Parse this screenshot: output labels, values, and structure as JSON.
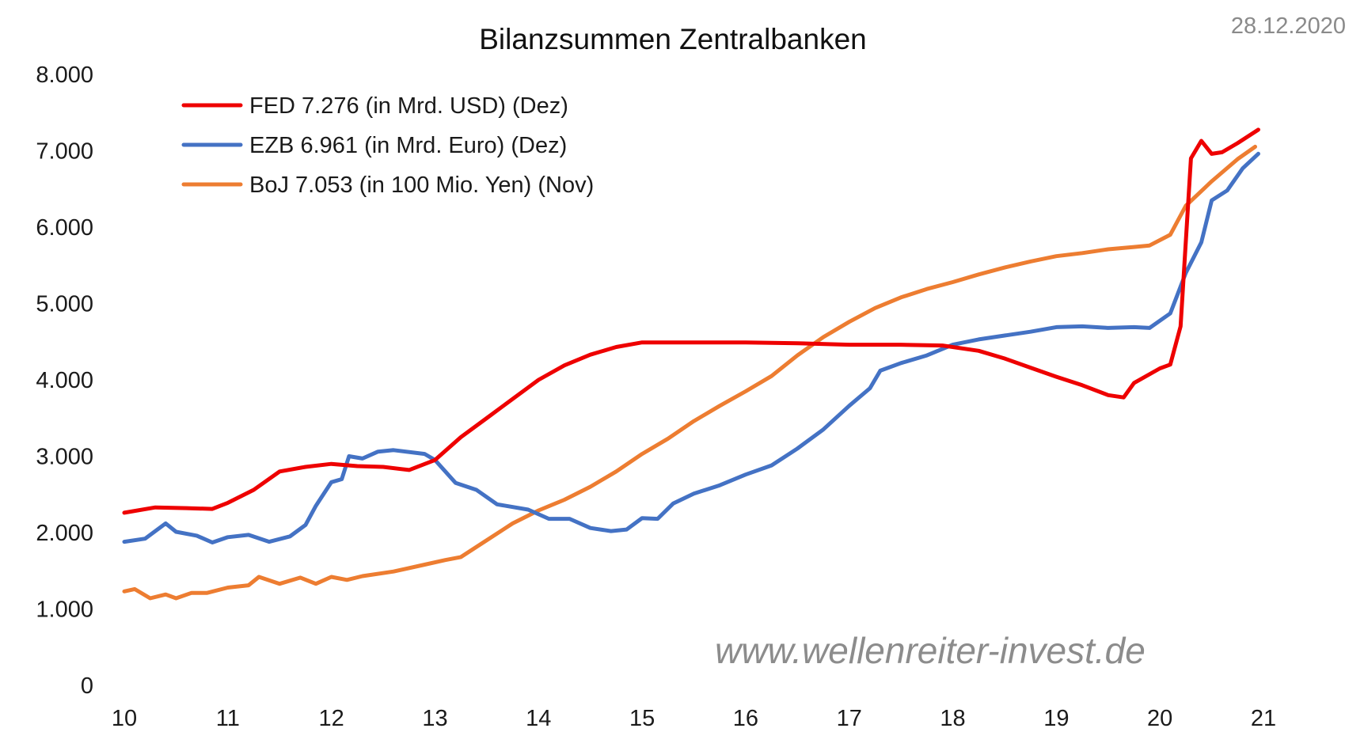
{
  "chart_data": {
    "type": "line",
    "title": "Bilanzsummen Zentralbanken",
    "date": "28.12.2020",
    "watermark": "www.wellenreiter-invest.de",
    "xlabel": "",
    "ylabel": "",
    "xlim": [
      10,
      21
    ],
    "ylim": [
      0,
      8000
    ],
    "x_ticks": [
      10,
      11,
      12,
      13,
      14,
      15,
      16,
      17,
      18,
      19,
      20,
      21
    ],
    "x_tick_labels": [
      "10",
      "11",
      "12",
      "13",
      "14",
      "15",
      "16",
      "17",
      "18",
      "19",
      "20",
      "21"
    ],
    "y_ticks": [
      0,
      1000,
      2000,
      3000,
      4000,
      5000,
      6000,
      7000,
      8000
    ],
    "y_tick_labels": [
      "0",
      "1.000",
      "2.000",
      "3.000",
      "4.000",
      "5.000",
      "6.000",
      "7.000",
      "8.000"
    ],
    "grid": false,
    "legend_position": "top-left",
    "series": [
      {
        "name": "FED 7.276 (in Mrd. USD) (Dez)",
        "color": "#ee0000",
        "x": [
          10.0,
          10.3,
          10.6,
          10.85,
          11.0,
          11.25,
          11.5,
          11.75,
          12.0,
          12.25,
          12.5,
          12.75,
          13.0,
          13.25,
          13.5,
          13.75,
          14.0,
          14.25,
          14.5,
          14.75,
          15.0,
          15.5,
          16.0,
          16.5,
          17.0,
          17.5,
          17.9,
          18.25,
          18.5,
          18.75,
          19.0,
          19.25,
          19.5,
          19.65,
          19.75,
          20.0,
          20.1,
          20.2,
          20.3,
          20.4,
          20.5,
          20.6,
          20.75,
          20.95
        ],
        "values": [
          2260,
          2330,
          2320,
          2310,
          2390,
          2560,
          2800,
          2860,
          2900,
          2870,
          2860,
          2820,
          2950,
          3250,
          3500,
          3750,
          4000,
          4190,
          4330,
          4430,
          4490,
          4490,
          4490,
          4480,
          4460,
          4460,
          4450,
          4380,
          4280,
          4160,
          4040,
          3930,
          3800,
          3770,
          3960,
          4150,
          4200,
          4700,
          6900,
          7130,
          6960,
          6980,
          7100,
          7276
        ]
      },
      {
        "name": "EZB 6.961 (in Mrd. Euro) (Dez)",
        "color": "#4472c4",
        "x": [
          10.0,
          10.2,
          10.4,
          10.5,
          10.7,
          10.85,
          11.0,
          11.2,
          11.4,
          11.6,
          11.75,
          11.85,
          12.0,
          12.1,
          12.17,
          12.3,
          12.45,
          12.6,
          12.9,
          13.0,
          13.2,
          13.4,
          13.6,
          13.9,
          14.1,
          14.3,
          14.5,
          14.7,
          14.85,
          15.0,
          15.15,
          15.3,
          15.5,
          15.75,
          16.0,
          16.25,
          16.5,
          16.75,
          17.0,
          17.2,
          17.3,
          17.5,
          17.75,
          18.0,
          18.25,
          18.5,
          18.75,
          19.0,
          19.25,
          19.5,
          19.75,
          19.9,
          20.1,
          20.25,
          20.4,
          20.5,
          20.65,
          20.8,
          20.95
        ],
        "values": [
          1880,
          1920,
          2120,
          2010,
          1960,
          1870,
          1940,
          1970,
          1880,
          1950,
          2100,
          2350,
          2660,
          2700,
          3000,
          2970,
          3060,
          3080,
          3030,
          2950,
          2650,
          2560,
          2370,
          2300,
          2180,
          2180,
          2060,
          2020,
          2040,
          2190,
          2180,
          2380,
          2510,
          2620,
          2760,
          2880,
          3100,
          3350,
          3660,
          3890,
          4120,
          4220,
          4320,
          4460,
          4530,
          4580,
          4630,
          4690,
          4700,
          4680,
          4690,
          4680,
          4870,
          5400,
          5800,
          6350,
          6480,
          6770,
          6961
        ]
      },
      {
        "name": "BoJ 7.053 (in 100 Mio. Yen) (Nov)",
        "color": "#ed7d31",
        "x": [
          10.0,
          10.1,
          10.25,
          10.4,
          10.5,
          10.65,
          10.8,
          11.0,
          11.2,
          11.3,
          11.5,
          11.7,
          11.85,
          12.0,
          12.15,
          12.3,
          12.6,
          12.9,
          13.1,
          13.25,
          13.5,
          13.75,
          14.0,
          14.25,
          14.5,
          14.75,
          15.0,
          15.25,
          15.5,
          15.75,
          16.0,
          16.25,
          16.5,
          16.75,
          17.0,
          17.25,
          17.5,
          17.75,
          18.0,
          18.25,
          18.5,
          18.75,
          19.0,
          19.25,
          19.5,
          19.75,
          19.9,
          20.1,
          20.25,
          20.5,
          20.75,
          20.92
        ],
        "values": [
          1230,
          1260,
          1140,
          1190,
          1140,
          1210,
          1210,
          1280,
          1310,
          1420,
          1330,
          1410,
          1330,
          1420,
          1380,
          1430,
          1490,
          1580,
          1640,
          1680,
          1900,
          2120,
          2290,
          2430,
          2600,
          2800,
          3030,
          3230,
          3460,
          3660,
          3850,
          4050,
          4320,
          4560,
          4760,
          4940,
          5080,
          5190,
          5280,
          5380,
          5470,
          5550,
          5620,
          5660,
          5710,
          5740,
          5760,
          5900,
          6280,
          6600,
          6890,
          7053
        ]
      }
    ]
  }
}
